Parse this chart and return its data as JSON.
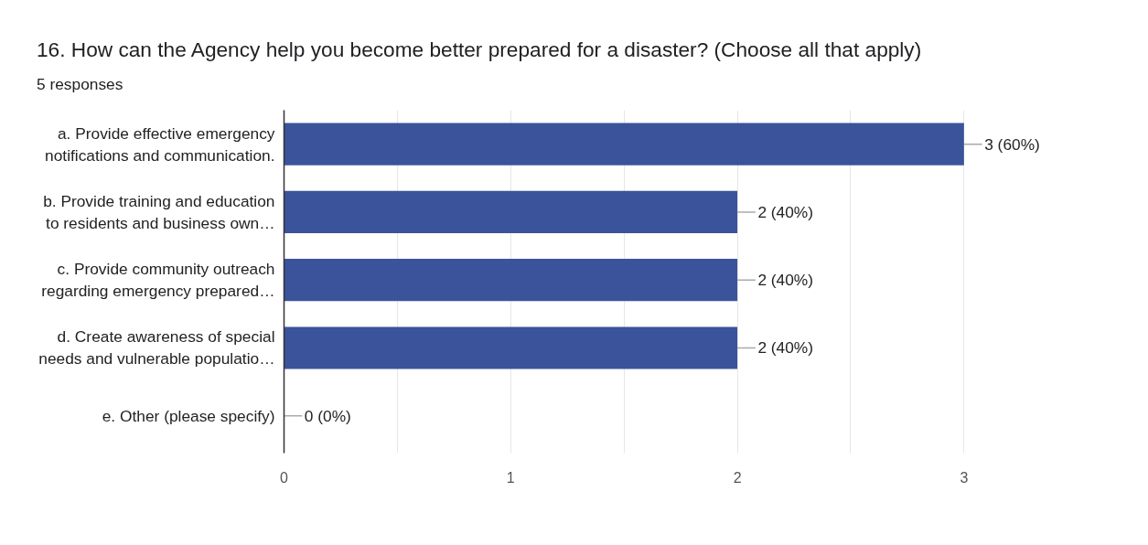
{
  "chart_data": {
    "type": "bar",
    "orientation": "horizontal",
    "title": "16. How can the Agency help you become better prepared for a disaster? (Choose all that apply)",
    "subtitle": "5 responses",
    "categories": [
      "a. Provide effective emergency\nnotifications and communication.",
      "b. Provide training and education\nto residents and business own…",
      "c. Provide community outreach\nregarding emergency prepared…",
      "d. Create awareness of special\nneeds and vulnerable populatio…",
      "e. Other (please specify)"
    ],
    "values": [
      3,
      2,
      2,
      2,
      0
    ],
    "value_labels": [
      "3 (60%)",
      "2 (40%)",
      "2 (40%)",
      "2 (40%)",
      "0 (0%)"
    ],
    "color": "#3b539a",
    "xlim": [
      0,
      3
    ],
    "xticks": [
      0,
      {
        "value": 0.5,
        "label": null
      },
      1,
      {
        "value": 1.5,
        "label": null
      },
      2,
      {
        "value": 2.5,
        "label": null
      },
      3
    ],
    "grid": "x",
    "legend": false
  }
}
